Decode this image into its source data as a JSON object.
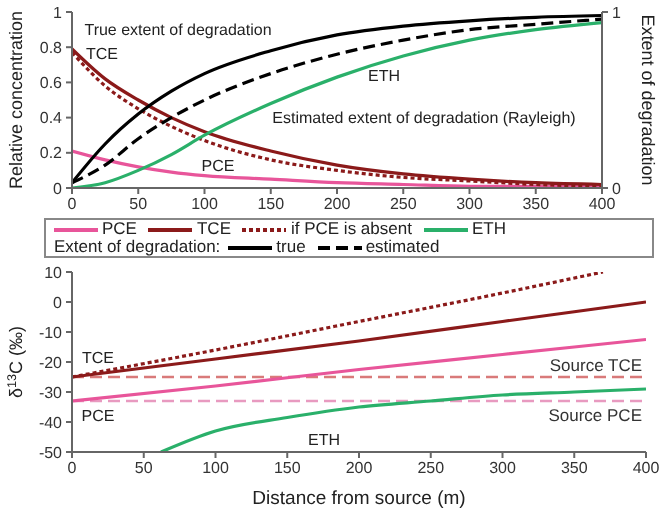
{
  "chart_data": [
    {
      "type": "line",
      "ylabel": "Relative concentration",
      "y2label": "Extent of degradation",
      "legend": "bottom",
      "legend_title": "Extent of degradation:",
      "xlim": [
        0,
        400
      ],
      "xticks": [
        0,
        50,
        100,
        150,
        200,
        250,
        300,
        350,
        400
      ],
      "ylim": [
        0,
        1
      ],
      "yticks": [
        0,
        0.2,
        0.4,
        0.6,
        0.8,
        1
      ],
      "y2lim": [
        0,
        1
      ],
      "y2ticks": [
        0,
        1
      ],
      "series": [
        {
          "name": "PCE",
          "color": "#e8559a",
          "x": [
            0,
            25,
            50,
            75,
            100,
            150,
            200,
            250,
            300,
            350,
            400
          ],
          "values": [
            0.21,
            0.16,
            0.12,
            0.09,
            0.07,
            0.05,
            0.03,
            0.02,
            0.01,
            0.01,
            0.01
          ]
        },
        {
          "name": "TCE",
          "color": "#8b1a1a",
          "x": [
            0,
            25,
            50,
            75,
            100,
            150,
            200,
            250,
            300,
            350,
            400
          ],
          "values": [
            0.79,
            0.62,
            0.5,
            0.4,
            0.32,
            0.21,
            0.13,
            0.08,
            0.05,
            0.03,
            0.02
          ]
        },
        {
          "name": "if PCE is absent",
          "color": "#8b1a1a",
          "line_style": "dotted",
          "x": [
            0,
            25,
            50,
            75,
            100,
            150,
            200,
            250,
            300,
            350,
            400
          ],
          "values": [
            0.77,
            0.58,
            0.45,
            0.35,
            0.27,
            0.16,
            0.1,
            0.06,
            0.04,
            0.02,
            0.01
          ]
        },
        {
          "name": "ETH",
          "color": "#2ab06a",
          "x": [
            0,
            25,
            50,
            75,
            100,
            150,
            200,
            250,
            300,
            350,
            400
          ],
          "values": [
            0,
            0.03,
            0.1,
            0.19,
            0.3,
            0.48,
            0.63,
            0.75,
            0.84,
            0.9,
            0.94
          ]
        },
        {
          "name": "true",
          "color": "#000000",
          "axis": "y2",
          "x": [
            0,
            25,
            50,
            75,
            100,
            150,
            200,
            250,
            300,
            350,
            400
          ],
          "values": [
            0.03,
            0.25,
            0.42,
            0.55,
            0.65,
            0.78,
            0.87,
            0.92,
            0.95,
            0.97,
            0.98
          ]
        },
        {
          "name": "estimated",
          "color": "#000000",
          "axis": "y2",
          "line_style": "dashed",
          "x": [
            0,
            25,
            50,
            75,
            100,
            150,
            200,
            250,
            300,
            350,
            400
          ],
          "values": [
            0.03,
            0.13,
            0.28,
            0.4,
            0.5,
            0.65,
            0.76,
            0.84,
            0.9,
            0.93,
            0.96
          ]
        }
      ],
      "annotations": [
        "TCE",
        "PCE",
        "ETH",
        "True extent of degradation",
        "Estimated extent of degradation (Rayleigh)"
      ]
    },
    {
      "type": "line",
      "xlabel": "Distance from source (m)",
      "ylabel": "δ$^{13}$C (‰)",
      "xlim": [
        0,
        400
      ],
      "xticks": [
        0,
        50,
        100,
        150,
        200,
        250,
        300,
        350,
        400
      ],
      "ylim": [
        -50,
        10
      ],
      "yticks": [
        -50,
        -40,
        -30,
        -20,
        -10,
        0,
        10
      ],
      "series": [
        {
          "color": "#8b1a1a",
          "x": [
            0,
            100,
            200,
            300,
            400
          ],
          "values": [
            -25,
            -19,
            -13,
            -6.5,
            0
          ]
        },
        {
          "color": "#8b1a1a",
          "line_style": "dotted",
          "x": [
            0,
            100,
            200,
            300,
            370
          ],
          "values": [
            -25,
            -16,
            -6.5,
            3,
            10
          ]
        },
        {
          "color": "#e8559a",
          "x": [
            0,
            100,
            200,
            300,
            400
          ],
          "values": [
            -33,
            -28,
            -22.5,
            -17.5,
            -12.5
          ]
        },
        {
          "color": "#2ab06a",
          "x": [
            62,
            100,
            150,
            200,
            250,
            300,
            350,
            400
          ],
          "values": [
            -50,
            -43,
            -38.5,
            -35,
            -33,
            -31,
            -30,
            -29
          ]
        }
      ],
      "ref_lines": [
        {
          "axis": "y",
          "value": -25,
          "label": "Source TCE",
          "color": "#d97a7a",
          "line_style": "dashed"
        },
        {
          "axis": "y",
          "value": -33,
          "label": "Source PCE",
          "color": "#e89ac0",
          "line_style": "dashed"
        }
      ],
      "annotations": [
        "TCE",
        "PCE",
        "ETH"
      ]
    }
  ]
}
